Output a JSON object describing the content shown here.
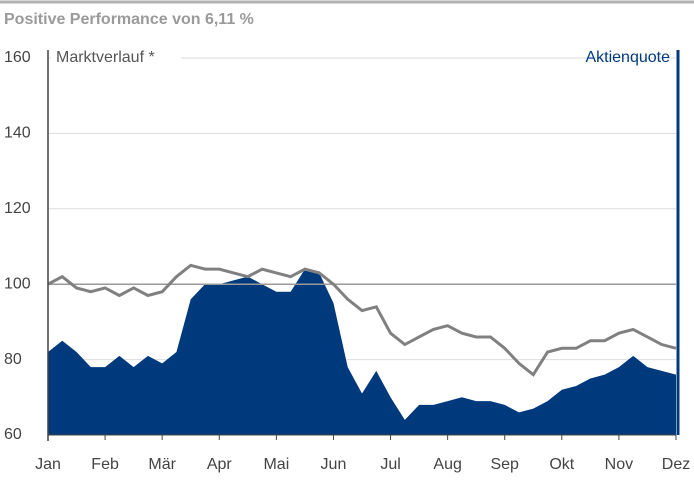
{
  "chart_data": {
    "type": "area-line",
    "title": "Positive Performance von 6,11 %",
    "x": [
      0,
      0.25,
      0.5,
      0.75,
      1,
      1.25,
      1.5,
      1.75,
      2,
      2.25,
      2.5,
      2.75,
      3,
      3.25,
      3.5,
      3.75,
      4,
      4.25,
      4.5,
      4.75,
      5,
      5.25,
      5.5,
      5.75,
      6,
      6.25,
      6.5,
      6.75,
      7,
      7.25,
      7.5,
      7.75,
      8,
      8.25,
      8.5,
      8.75,
      9,
      9.25,
      9.5,
      9.75,
      10,
      10.25,
      10.5,
      10.75,
      11
    ],
    "xlim": [
      0,
      11
    ],
    "xticks": [
      {
        "value": 0,
        "label": "Jan"
      },
      {
        "value": 1,
        "label": "Feb"
      },
      {
        "value": 2,
        "label": "Mär"
      },
      {
        "value": 3,
        "label": "Apr"
      },
      {
        "value": 4,
        "label": "Mai"
      },
      {
        "value": 5,
        "label": "Jun"
      },
      {
        "value": 6,
        "label": "Jul"
      },
      {
        "value": 7,
        "label": "Aug"
      },
      {
        "value": 8,
        "label": "Sep"
      },
      {
        "value": 9,
        "label": "Okt"
      },
      {
        "value": 10,
        "label": "Nov"
      },
      {
        "value": 11,
        "label": "Dez"
      }
    ],
    "ylim": [
      60,
      160
    ],
    "yticks": [
      60,
      80,
      100,
      120,
      140,
      160
    ],
    "grid": true,
    "reference_line": 100,
    "series": [
      {
        "name": "Aktienquote",
        "kind": "area",
        "color": "#003a7d",
        "values": [
          82,
          85,
          82,
          78,
          78,
          81,
          78,
          81,
          79,
          82,
          96,
          100,
          100,
          101,
          102,
          100,
          98,
          98,
          104,
          103,
          95,
          78,
          71,
          77,
          70,
          64,
          68,
          68,
          69,
          70,
          69,
          69,
          68,
          66,
          67,
          69,
          72,
          73,
          75,
          76,
          78,
          81,
          78,
          77,
          76
        ]
      },
      {
        "name": "Marktverlauf *",
        "kind": "line",
        "color": "#808080",
        "values": [
          100,
          102,
          99,
          98,
          99,
          97,
          99,
          97,
          98,
          102,
          105,
          104,
          104,
          103,
          102,
          104,
          103,
          102,
          104,
          103,
          100,
          96,
          93,
          94,
          87,
          84,
          86,
          88,
          89,
          87,
          86,
          86,
          83,
          79,
          76,
          82,
          83,
          83,
          85,
          85,
          87,
          88,
          86,
          84,
          83
        ]
      }
    ]
  }
}
